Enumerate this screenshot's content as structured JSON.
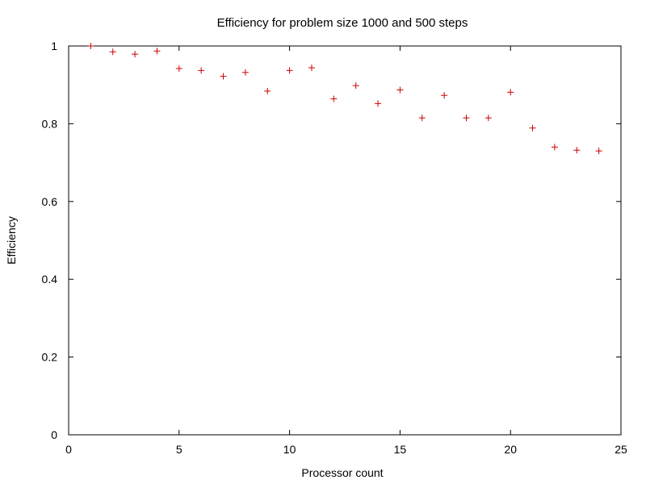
{
  "chart_data": {
    "type": "scatter",
    "title": "Efficiency for problem size 1000 and 500 steps",
    "xlabel": "Processor count",
    "ylabel": "Efficiency",
    "xlim": [
      0,
      25
    ],
    "ylim": [
      0,
      1
    ],
    "xticks": [
      "0",
      "5",
      "10",
      "15",
      "20",
      "25"
    ],
    "yticks": [
      "0",
      "0.2",
      "0.4",
      "0.6",
      "0.8",
      "1"
    ],
    "grid": false,
    "marker": "+",
    "color": "#cc0000",
    "x": [
      1,
      2,
      3,
      4,
      5,
      6,
      7,
      8,
      9,
      10,
      11,
      12,
      13,
      14,
      15,
      16,
      17,
      18,
      19,
      20,
      21,
      22,
      23,
      24
    ],
    "y": [
      1.0,
      0.985,
      0.979,
      0.987,
      0.942,
      0.937,
      0.922,
      0.932,
      0.884,
      0.937,
      0.944,
      0.864,
      0.898,
      0.852,
      0.887,
      0.815,
      0.873,
      0.815,
      0.815,
      0.881,
      0.789,
      0.74,
      0.732,
      0.73
    ]
  }
}
